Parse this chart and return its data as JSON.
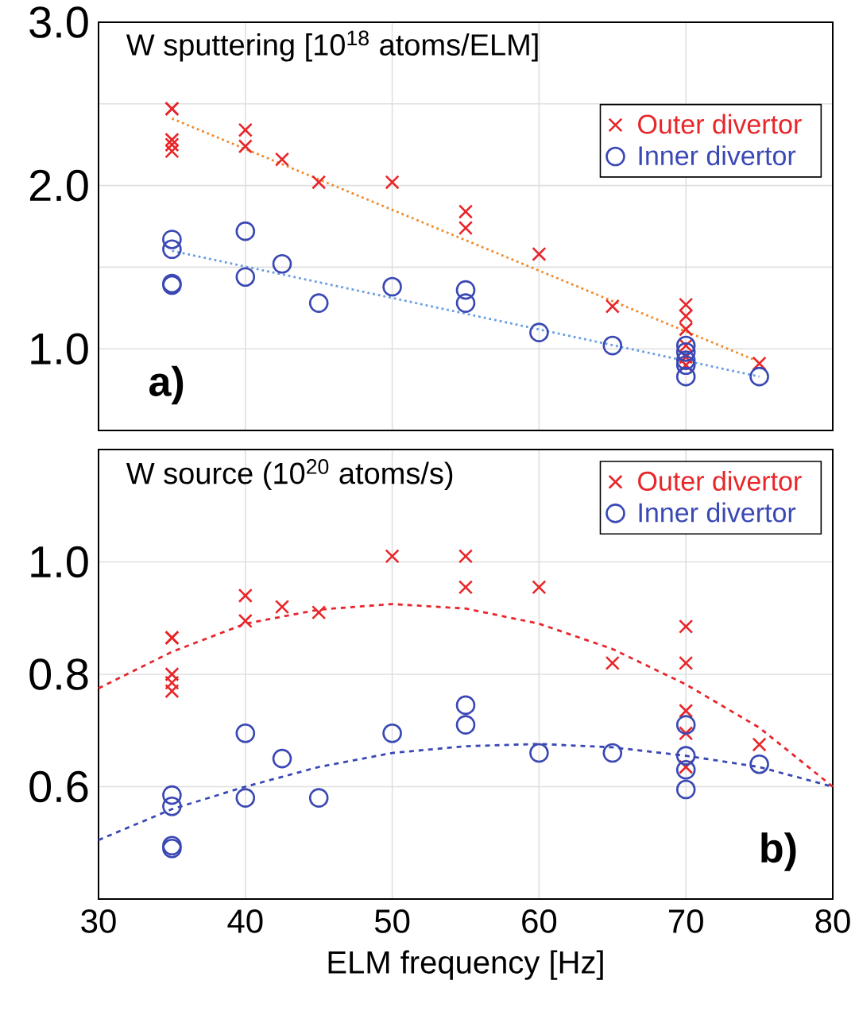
{
  "chart_data": [
    {
      "type": "scatter",
      "title": "W sputtering [10$^{18}$ atoms/ELM]",
      "annotations": [
        "a)"
      ],
      "xlim": [
        30,
        80
      ],
      "xticks": [
        30,
        40,
        50,
        60,
        70,
        80
      ],
      "ylim": [
        0.5,
        3.0
      ],
      "yticks": [
        {
          "value": 1.0,
          "label": "1.0"
        },
        {
          "value": 1.5,
          "label": null
        },
        {
          "value": 2.0,
          "label": "2.0"
        },
        {
          "value": 2.5,
          "label": null
        },
        {
          "value": 3.0,
          "label": "3.0"
        }
      ],
      "grid": true,
      "legend": "top right",
      "tick_labels": "y",
      "series": [
        {
          "name": "Outer divertor",
          "color": "#e8262a",
          "marker": "cross",
          "x": [
            35,
            35,
            35,
            35,
            35,
            40,
            40,
            42.5,
            45,
            50,
            55,
            55,
            60,
            65,
            70,
            70,
            70,
            70,
            70,
            70,
            75
          ],
          "values": [
            2.47,
            2.47,
            2.28,
            2.25,
            2.21,
            2.34,
            2.24,
            2.16,
            2.02,
            2.02,
            1.84,
            1.74,
            1.58,
            1.26,
            1.27,
            1.2,
            1.12,
            1.02,
            0.95,
            0.9,
            0.91
          ]
        },
        {
          "name": "Inner divertor",
          "color": "#3a48b4",
          "marker": "circle",
          "x": [
            35,
            35,
            35,
            35,
            40,
            40,
            42.5,
            45,
            50,
            55,
            55,
            60,
            65,
            70,
            70,
            70,
            70,
            70,
            75
          ],
          "values": [
            1.67,
            1.61,
            1.4,
            1.39,
            1.72,
            1.44,
            1.52,
            1.28,
            1.38,
            1.36,
            1.28,
            1.1,
            1.02,
            1.02,
            0.98,
            0.93,
            0.9,
            0.83,
            0.83
          ]
        },
        {
          "color": "#f08a2a",
          "type": "line",
          "marker": "none",
          "line_style": "dotted",
          "x": [
            35,
            75
          ],
          "values": [
            2.41,
            0.92
          ]
        },
        {
          "color": "#6a9ee0",
          "type": "line",
          "marker": "none",
          "line_style": "dotted",
          "x": [
            35,
            75
          ],
          "values": [
            1.6,
            0.83
          ]
        }
      ]
    },
    {
      "type": "scatter",
      "title": "W source (10$^{20}$ atoms/s)",
      "xlabel": "ELM frequency  [Hz]",
      "annotations": [
        "b)"
      ],
      "xlim": [
        30,
        80
      ],
      "xticks": [
        30,
        40,
        50,
        60,
        70,
        80
      ],
      "ylim": [
        0.4,
        1.2
      ],
      "yticks": [
        {
          "value": 0.6,
          "label": "0.6"
        },
        {
          "value": 0.8,
          "label": "0.8"
        },
        {
          "value": 1.0,
          "label": "1.0"
        }
      ],
      "grid": true,
      "legend": "top right",
      "series": [
        {
          "name": "Outer divertor",
          "color": "#e8262a",
          "marker": "cross",
          "x": [
            35,
            35,
            35,
            35,
            35,
            40,
            40,
            42.5,
            45,
            50,
            55,
            55,
            60,
            65,
            70,
            70,
            70,
            70,
            70,
            75
          ],
          "values": [
            0.865,
            0.865,
            0.8,
            0.785,
            0.77,
            0.94,
            0.895,
            0.92,
            0.91,
            1.01,
            1.01,
            0.955,
            0.955,
            0.82,
            0.885,
            0.82,
            0.735,
            0.695,
            0.635,
            0.675
          ]
        },
        {
          "name": "Inner divertor",
          "color": "#3a48b4",
          "marker": "circle",
          "x": [
            35,
            35,
            35,
            35,
            40,
            40,
            42.5,
            45,
            50,
            55,
            55,
            60,
            65,
            70,
            70,
            70,
            70,
            75
          ],
          "values": [
            0.585,
            0.565,
            0.495,
            0.49,
            0.695,
            0.58,
            0.65,
            0.58,
            0.695,
            0.745,
            0.71,
            0.66,
            0.66,
            0.71,
            0.655,
            0.63,
            0.595,
            0.64
          ]
        },
        {
          "color": "#e8262a",
          "type": "line",
          "marker": "none",
          "line_style": "dashed",
          "x": [
            30,
            35,
            40,
            45,
            50,
            55,
            60,
            65,
            70,
            75,
            80
          ],
          "values": [
            0.775,
            0.84,
            0.89,
            0.915,
            0.925,
            0.917,
            0.89,
            0.845,
            0.782,
            0.705,
            0.6
          ]
        },
        {
          "color": "#3a48b4",
          "type": "line",
          "marker": "none",
          "line_style": "dashed",
          "x": [
            30,
            35,
            40,
            45,
            50,
            55,
            60,
            65,
            70,
            75,
            80
          ],
          "values": [
            0.505,
            0.56,
            0.6,
            0.635,
            0.66,
            0.672,
            0.676,
            0.67,
            0.655,
            0.635,
            0.6
          ]
        }
      ]
    }
  ]
}
